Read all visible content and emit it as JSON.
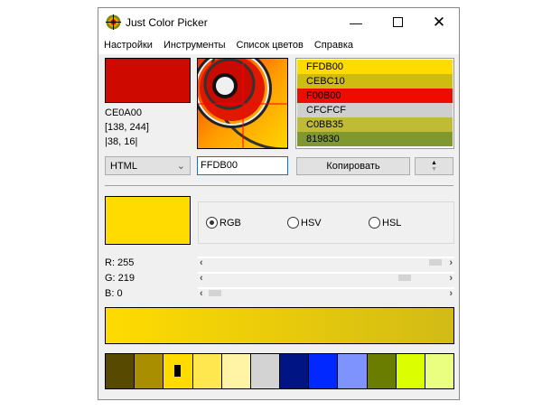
{
  "window": {
    "title": "Just Color Picker"
  },
  "menu": [
    "Настройки",
    "Инструменты",
    "Список цветов",
    "Справка"
  ],
  "picked": {
    "color": "#CE0A00",
    "hex": "CE0A00",
    "coords": "[138, 244]",
    "rel": "|38, 16|"
  },
  "history": [
    {
      "hex": "FFDB00",
      "color": "#FFDB00"
    },
    {
      "hex": "CEBC10",
      "color": "#CEBC10"
    },
    {
      "hex": "F00B00",
      "color": "#F00B00"
    },
    {
      "hex": "CFCFCF",
      "color": "#CFCFCF"
    },
    {
      "hex": "C0BB35",
      "color": "#C0BB35"
    },
    {
      "hex": "819830",
      "color": "#819830"
    }
  ],
  "format": {
    "selected": "HTML"
  },
  "code_input": {
    "value": "FFDB00"
  },
  "copy_label": "Копировать",
  "current": {
    "color": "#FFDB00"
  },
  "modes": {
    "rgb": "RGB",
    "hsv": "HSV",
    "hsl": "HSL",
    "selected": "RGB"
  },
  "channels": [
    {
      "label": "R: 255",
      "value": 255
    },
    {
      "label": "G: 219",
      "value": 219
    },
    {
      "label": "B: 0",
      "value": 0
    }
  ],
  "gradient": {
    "from": "#FFDB00",
    "to": "#D2BB16"
  },
  "palette": [
    "#574A00",
    "#A98E00",
    "#FFDB00",
    "#FFE84F",
    "#FFF3A6",
    "#D3D3D3",
    "#001483",
    "#0028FF",
    "#7F93FF",
    "#6A7D00",
    "#DBFF00",
    "#EAFF7F"
  ]
}
